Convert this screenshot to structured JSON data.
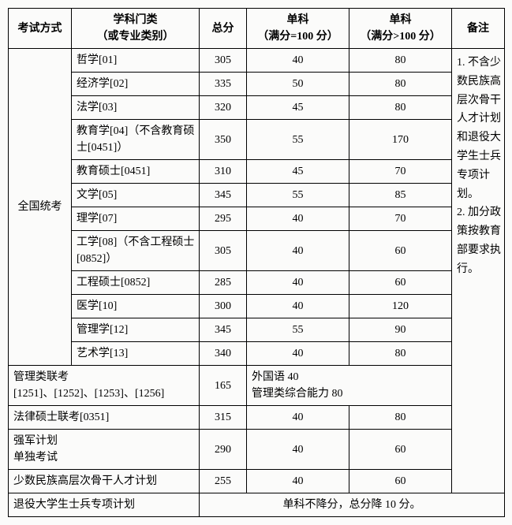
{
  "header": {
    "col1": "考试方式",
    "col2": "学科门类\n（或专业类别）",
    "col3": "总分",
    "col4": "单科\n（满分=100 分）",
    "col5": "单科\n（满分>100 分）",
    "col6": "备注"
  },
  "group_label": "全国统考",
  "rows": [
    {
      "subject": "哲学[01]",
      "total": "305",
      "s100": "40",
      "sgt100": "80"
    },
    {
      "subject": "经济学[02]",
      "total": "335",
      "s100": "50",
      "sgt100": "80"
    },
    {
      "subject": "法学[03]",
      "total": "320",
      "s100": "45",
      "sgt100": "80"
    },
    {
      "subject": "教育学[04]（不含教育硕士[0451]）",
      "total": "350",
      "s100": "55",
      "sgt100": "170"
    },
    {
      "subject": "教育硕士[0451]",
      "total": "310",
      "s100": "45",
      "sgt100": "70"
    },
    {
      "subject": "文学[05]",
      "total": "345",
      "s100": "55",
      "sgt100": "85"
    },
    {
      "subject": "理学[07]",
      "total": "295",
      "s100": "40",
      "sgt100": "70"
    },
    {
      "subject": "工学[08]（不含工程硕士[0852]）",
      "total": "305",
      "s100": "40",
      "sgt100": "60"
    },
    {
      "subject": "工程硕士[0852]",
      "total": "285",
      "s100": "40",
      "sgt100": "60"
    },
    {
      "subject": "医学[10]",
      "total": "300",
      "s100": "40",
      "sgt100": "120"
    },
    {
      "subject": "管理学[12]",
      "total": "345",
      "s100": "55",
      "sgt100": "90"
    },
    {
      "subject": "艺术学[13]",
      "total": "340",
      "s100": "40",
      "sgt100": "80"
    }
  ],
  "notes": "1. 不含少数民族高层次骨干人才计划和退役大学生士兵专项计划。\n2. 加分政策按教育部要求执行。",
  "bottom": [
    {
      "label": "管理类联考\n[1251]、[1252]、[1253]、[1256]",
      "total": "165",
      "merged": "外国语 40\n管理类综合能力 80"
    },
    {
      "label": "法律硕士联考[0351]",
      "total": "315",
      "s100": "40",
      "sgt100": "80"
    },
    {
      "label": "强军计划\n单独考试",
      "total": "290",
      "s100": "40",
      "sgt100": "60"
    },
    {
      "label": "少数民族高层次骨干人才计划",
      "total": "255",
      "s100": "40",
      "sgt100": "60"
    },
    {
      "label": "退役大学生士兵专项计划",
      "merged_full": "单科不降分，总分降 10 分。"
    }
  ]
}
